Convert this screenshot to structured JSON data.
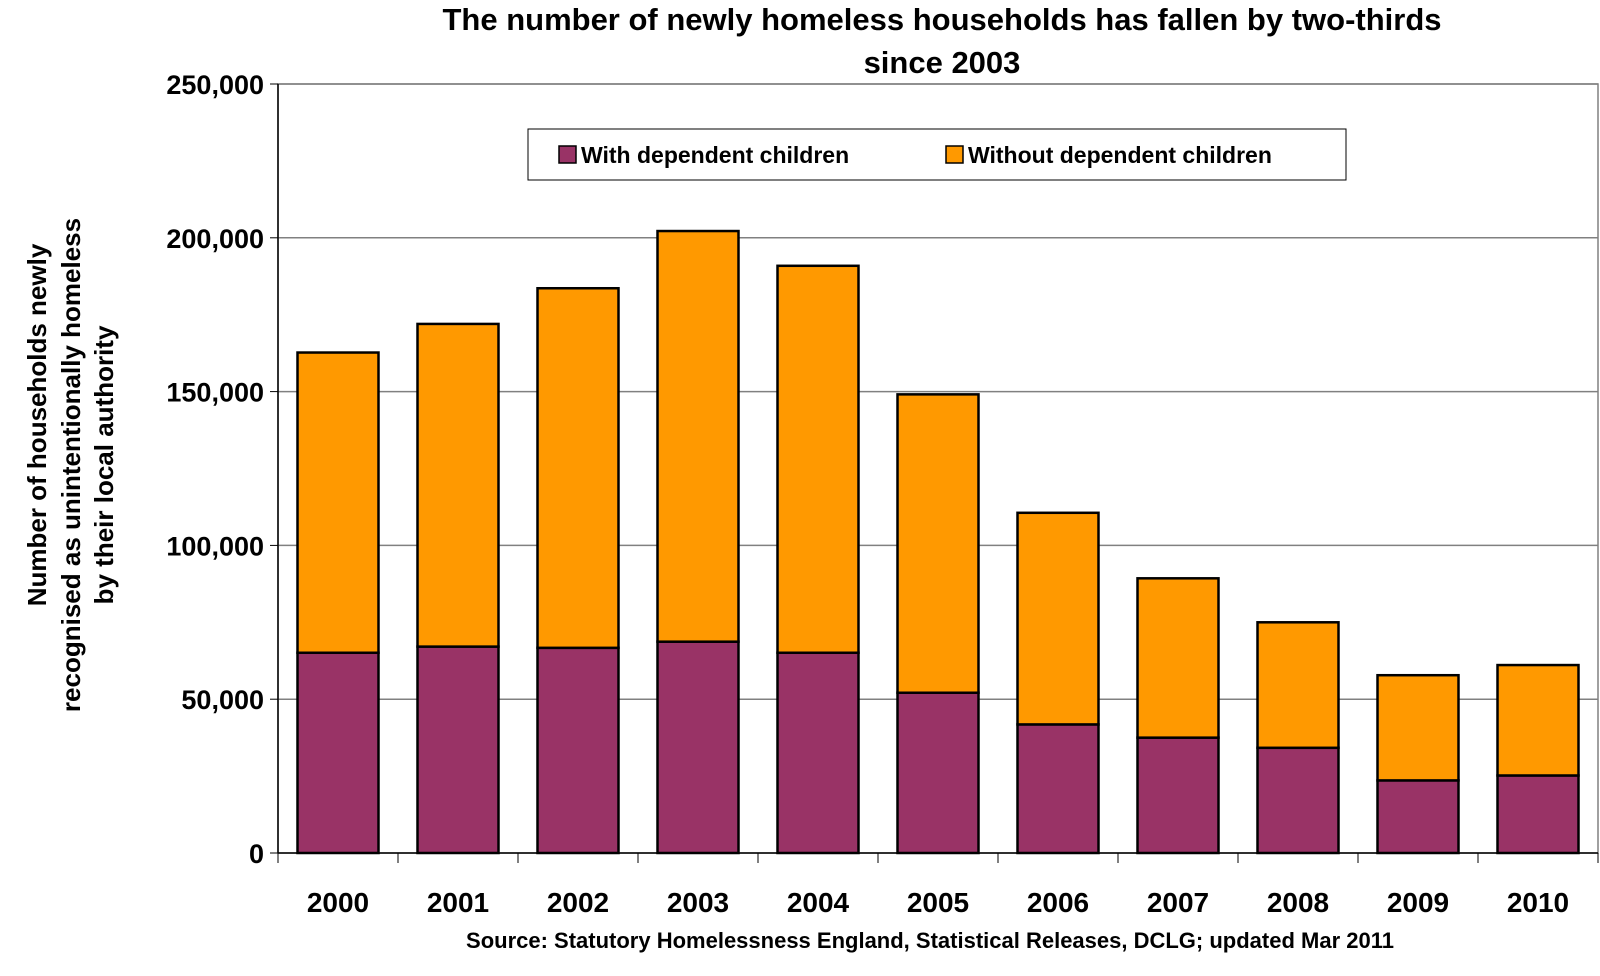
{
  "chart_data": {
    "type": "bar",
    "stacked": true,
    "title_lines": [
      "The number of newly homeless households has fallen by two-thirds",
      "since 2003"
    ],
    "title": "The number of newly homeless households has fallen by two-thirds since 2003",
    "ylabel_lines": [
      "Number of households newly",
      "recognised as unintentionally homeless",
      "by their local authority"
    ],
    "ylabel": "Number of households newly recognised as unintentionally homeless by their local authority",
    "xlabel": "",
    "source": "Source: Statutory Homelessness England, Statistical Releases, DCLG; updated Mar 2011",
    "categories": [
      "2000",
      "2001",
      "2002",
      "2003",
      "2004",
      "2005",
      "2006",
      "2007",
      "2008",
      "2009",
      "2010"
    ],
    "series": [
      {
        "name": "With dependent children",
        "color": "#993366",
        "values": [
          65100,
          67100,
          66700,
          68700,
          65100,
          52100,
          41800,
          37500,
          34200,
          23600,
          25200
        ]
      },
      {
        "name": "Without dependent children",
        "color": "#FF9900",
        "values": [
          97600,
          104900,
          116900,
          133500,
          125800,
          97000,
          68800,
          51800,
          40800,
          34200,
          35900
        ]
      }
    ],
    "ylim": [
      0,
      250000
    ],
    "yticks": [
      0,
      50000,
      100000,
      150000,
      200000,
      250000
    ],
    "ytick_labels": [
      "0",
      "50,000",
      "100,000",
      "150,000",
      "200,000",
      "250,000"
    ],
    "grid": true,
    "legend_position": "top-center"
  }
}
